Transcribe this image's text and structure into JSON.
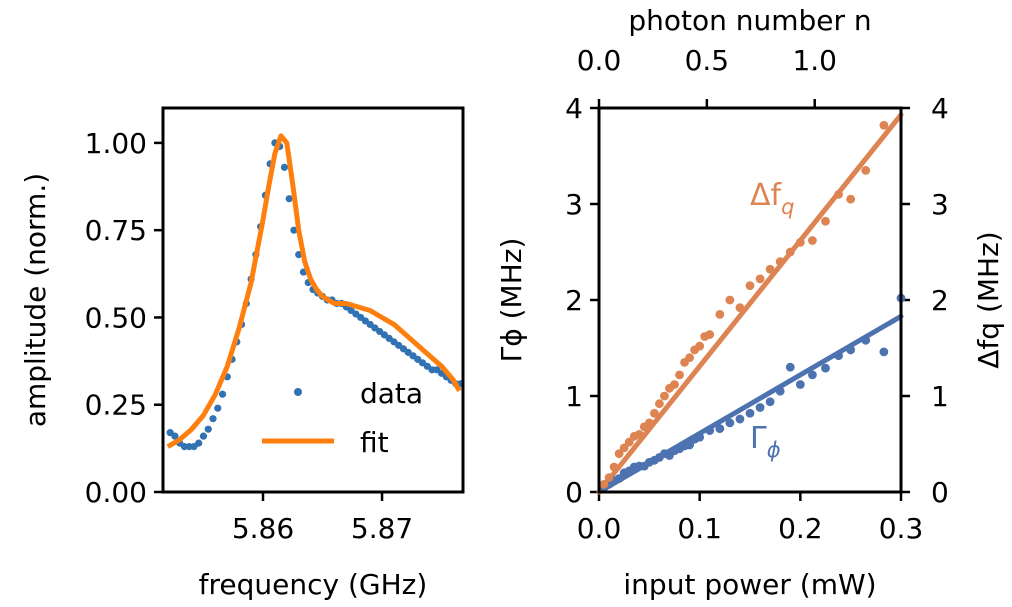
{
  "colors": {
    "blue": "#3173b2",
    "orange": "#ff7f0e",
    "series_blue": "#4c72b0",
    "series_orange": "#dd8452"
  },
  "chart_data": [
    {
      "type": "scatter",
      "title": "",
      "xlabel": "frequency (GHz)",
      "ylabel": "amplitude (norm.)",
      "xlim": [
        5.8516,
        5.8768
      ],
      "ylim": [
        0,
        1.1
      ],
      "xticks": [
        5.86,
        5.87
      ],
      "xtick_labels": [
        "5.86",
        "5.87"
      ],
      "yticks": [
        0,
        0.25,
        0.5,
        0.75,
        1.0
      ],
      "ytick_labels": [
        "0.00",
        "0.25",
        "0.50",
        "0.75",
        "1.00"
      ],
      "legend": {
        "placement": "lower-right",
        "entries": [
          "data",
          "fit"
        ]
      },
      "series": [
        {
          "name": "data",
          "kind": "points",
          "x": [
            5.8522,
            5.8526,
            5.853,
            5.8534,
            5.8538,
            5.8542,
            5.8546,
            5.855,
            5.8554,
            5.8558,
            5.8562,
            5.8566,
            5.857,
            5.8574,
            5.8578,
            5.8582,
            5.8586,
            5.859,
            5.8594,
            5.8598,
            5.8602,
            5.8606,
            5.861,
            5.8614,
            5.8618,
            5.8622,
            5.8626,
            5.863,
            5.8634,
            5.8638,
            5.8642,
            5.8646,
            5.865,
            5.8654,
            5.8658,
            5.8662,
            5.8666,
            5.867,
            5.8674,
            5.8678,
            5.8682,
            5.8686,
            5.869,
            5.8694,
            5.8698,
            5.8702,
            5.8706,
            5.871,
            5.8714,
            5.8718,
            5.8722,
            5.8726,
            5.873,
            5.8734,
            5.8738,
            5.8742,
            5.8746,
            5.875,
            5.8754,
            5.8758,
            5.8762,
            5.8766
          ],
          "y": [
            0.17,
            0.16,
            0.14,
            0.13,
            0.13,
            0.13,
            0.14,
            0.16,
            0.18,
            0.21,
            0.24,
            0.28,
            0.33,
            0.38,
            0.43,
            0.48,
            0.54,
            0.61,
            0.68,
            0.76,
            0.85,
            0.94,
            1.0,
            0.99,
            0.93,
            0.84,
            0.75,
            0.68,
            0.63,
            0.6,
            0.58,
            0.57,
            0.56,
            0.55,
            0.55,
            0.54,
            0.54,
            0.53,
            0.52,
            0.51,
            0.5,
            0.49,
            0.48,
            0.47,
            0.46,
            0.45,
            0.44,
            0.43,
            0.42,
            0.41,
            0.4,
            0.39,
            0.38,
            0.37,
            0.36,
            0.35,
            0.35,
            0.34,
            0.33,
            0.32,
            0.31,
            0.31
          ]
        },
        {
          "name": "fit",
          "kind": "line",
          "x": [
            5.852,
            5.853,
            5.854,
            5.855,
            5.856,
            5.857,
            5.858,
            5.859,
            5.86,
            5.8605,
            5.861,
            5.8615,
            5.862,
            5.8625,
            5.863,
            5.8635,
            5.864,
            5.8645,
            5.865,
            5.866,
            5.867,
            5.868,
            5.869,
            5.87,
            5.871,
            5.872,
            5.873,
            5.874,
            5.875,
            5.876,
            5.8765
          ],
          "y": [
            0.13,
            0.15,
            0.18,
            0.22,
            0.28,
            0.36,
            0.47,
            0.6,
            0.78,
            0.88,
            0.97,
            1.02,
            1.0,
            0.88,
            0.75,
            0.66,
            0.61,
            0.58,
            0.56,
            0.54,
            0.54,
            0.53,
            0.52,
            0.5,
            0.48,
            0.45,
            0.42,
            0.39,
            0.36,
            0.32,
            0.29
          ]
        }
      ]
    },
    {
      "type": "scatter",
      "title": "",
      "xlabel": "input power (mW)",
      "ylabel": "Γϕ (MHz)",
      "ylabel_right": "Δfq (MHz)",
      "xlabel_top": "photon number n",
      "xlim": [
        0,
        0.3
      ],
      "ylim": [
        0,
        4
      ],
      "ylim_right": [
        0,
        4
      ],
      "xticks": [
        0.0,
        0.1,
        0.2,
        0.3
      ],
      "xtick_labels": [
        "0.0",
        "0.1",
        "0.2",
        "0.3"
      ],
      "yticks": [
        0,
        1,
        2,
        3,
        4
      ],
      "ytick_labels": [
        "0",
        "1",
        "2",
        "3",
        "4"
      ],
      "top_xticks": [
        0.0,
        0.5,
        1.0
      ],
      "top_xtick_labels": [
        "0.0",
        "0.5",
        "1.0"
      ],
      "top_n_per_mw": 4.6667,
      "annotations": [
        {
          "name": "delta-fq",
          "main": "Δf",
          "sub": "q",
          "color": "#dd8452"
        },
        {
          "name": "gamma-phi",
          "main": "Γ",
          "sub": "ϕ",
          "color": "#4c72b0"
        }
      ],
      "series": [
        {
          "name": "Γϕ",
          "kind": "points",
          "color": "#4c72b0",
          "x": [
            0.005,
            0.01,
            0.015,
            0.02,
            0.025,
            0.03,
            0.035,
            0.04,
            0.045,
            0.05,
            0.055,
            0.06,
            0.065,
            0.07,
            0.075,
            0.08,
            0.085,
            0.09,
            0.095,
            0.1,
            0.11,
            0.12,
            0.13,
            0.14,
            0.15,
            0.16,
            0.17,
            0.18,
            0.19,
            0.2,
            0.212,
            0.225,
            0.238,
            0.25,
            0.265,
            0.283,
            0.3
          ],
          "y": [
            0.05,
            0.08,
            0.12,
            0.14,
            0.2,
            0.22,
            0.26,
            0.27,
            0.27,
            0.31,
            0.33,
            0.36,
            0.4,
            0.38,
            0.43,
            0.45,
            0.48,
            0.49,
            0.55,
            0.57,
            0.64,
            0.66,
            0.72,
            0.76,
            0.82,
            0.88,
            0.94,
            1.05,
            1.3,
            1.12,
            1.22,
            1.29,
            1.42,
            1.48,
            1.58,
            1.46,
            2.02
          ]
        },
        {
          "name": "Δfq",
          "kind": "points",
          "color": "#dd8452",
          "x": [
            0.005,
            0.01,
            0.015,
            0.02,
            0.025,
            0.03,
            0.035,
            0.04,
            0.045,
            0.05,
            0.055,
            0.06,
            0.065,
            0.07,
            0.075,
            0.08,
            0.085,
            0.09,
            0.095,
            0.1,
            0.105,
            0.11,
            0.12,
            0.13,
            0.14,
            0.15,
            0.16,
            0.17,
            0.18,
            0.19,
            0.2,
            0.212,
            0.225,
            0.238,
            0.25,
            0.265,
            0.283
          ],
          "y": [
            0.08,
            0.15,
            0.26,
            0.4,
            0.46,
            0.52,
            0.58,
            0.6,
            0.68,
            0.72,
            0.82,
            0.92,
            1.0,
            1.08,
            1.12,
            1.22,
            1.35,
            1.4,
            1.48,
            1.52,
            1.62,
            1.64,
            1.85,
            2.0,
            1.92,
            2.15,
            2.22,
            2.32,
            2.4,
            2.5,
            2.6,
            2.62,
            2.82,
            3.1,
            3.05,
            3.35,
            3.82
          ]
        },
        {
          "name": "Γϕ fit",
          "kind": "line",
          "color": "#4c72b0",
          "x": [
            0,
            0.3
          ],
          "y": [
            0.0,
            1.83
          ]
        },
        {
          "name": "Δfq fit",
          "kind": "line",
          "color": "#dd8452",
          "x": [
            0,
            0.3
          ],
          "y": [
            0.0,
            3.93
          ]
        }
      ]
    }
  ]
}
